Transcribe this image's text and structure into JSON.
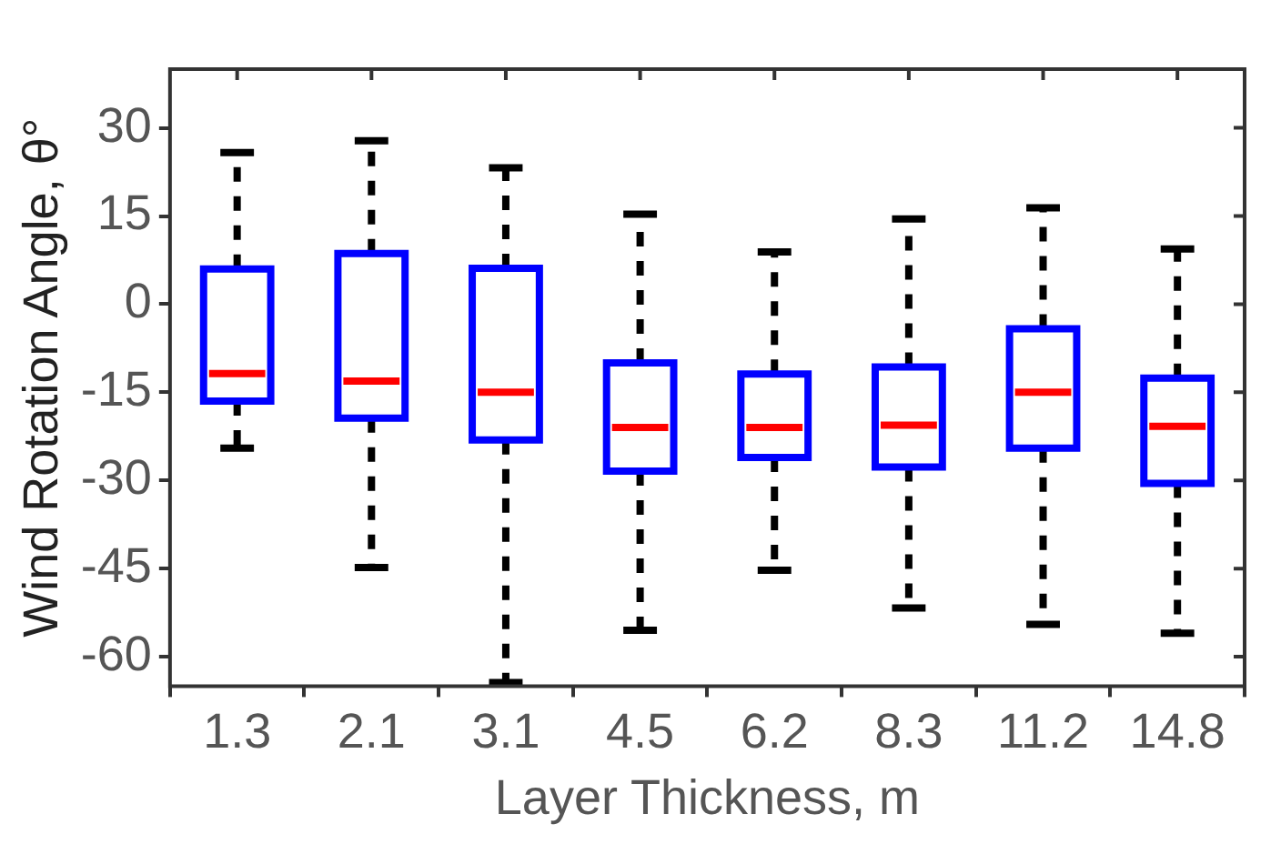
{
  "chart_data": {
    "type": "box",
    "xlabel": "Layer Thickness, m",
    "ylabel": "Wind Rotation Angle, θ°",
    "categories": [
      "1.3",
      "2.1",
      "3.1",
      "4.5",
      "6.2",
      "8.3",
      "11.2",
      "14.8"
    ],
    "ylim": [
      -65,
      40
    ],
    "yticks": [
      -60,
      -45,
      -30,
      -15,
      0,
      15,
      30
    ],
    "grid": false,
    "legend": false,
    "line_style": "dashed",
    "series": [
      {
        "color": "#0000ff",
        "boxes": [
          {
            "low": -24.5,
            "q1": -16.5,
            "median": -11.8,
            "q3": 6,
            "high": 25.8
          },
          {
            "low": -44.8,
            "q1": -19.4,
            "median": -13.1,
            "q3": 8.6,
            "high": 27.8
          },
          {
            "low": -64.4,
            "q1": -23.1,
            "median": -15,
            "q3": 6.1,
            "high": 23.2
          },
          {
            "low": -55.5,
            "q1": -28.4,
            "median": -21,
            "q3": -10,
            "high": 15.3
          },
          {
            "low": -45.3,
            "q1": -26.1,
            "median": -21,
            "q3": -11.9,
            "high": 8.9
          },
          {
            "low": -51.7,
            "q1": -27.7,
            "median": -20.6,
            "q3": -10.7,
            "high": 14.5
          },
          {
            "low": -54.5,
            "q1": -24.5,
            "median": -15,
            "q3": -4.2,
            "high": 16.4
          },
          {
            "low": -56,
            "q1": -30.5,
            "median": -20.8,
            "q3": -12.6,
            "high": 9.4
          }
        ]
      }
    ]
  }
}
